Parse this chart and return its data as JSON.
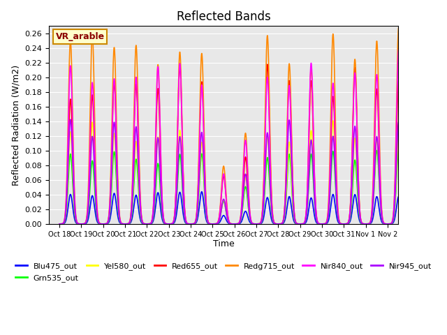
{
  "title": "Reflected Bands",
  "ylabel": "Reflected Radiation (W/m2)",
  "xlabel": "Time",
  "annotation": "VR_arable",
  "ylim": [
    0,
    0.27
  ],
  "yticks": [
    0.0,
    0.02,
    0.04,
    0.06,
    0.08,
    0.1,
    0.12,
    0.14,
    0.16,
    0.18,
    0.2,
    0.22,
    0.24,
    0.26
  ],
  "xtick_labels": [
    "Oct 18",
    "Oct 19",
    "Oct 20",
    "Oct 21",
    "Oct 22",
    "Oct 23",
    "Oct 24",
    "Oct 25",
    "Oct 26",
    "Oct 27",
    "Oct 28",
    "Oct 29",
    "Oct 30",
    "Oct 31",
    "Nov 1",
    "Nov 2"
  ],
  "n_days": 16,
  "pts_per_day": 96,
  "background_color": "#e8e8e8",
  "series": [
    {
      "name": "Blu475_out",
      "color": "#0000ff",
      "peak": 0.04,
      "lw": 1.2
    },
    {
      "name": "Grn535_out",
      "color": "#00ff00",
      "peak": 0.097,
      "lw": 1.2
    },
    {
      "name": "Yel580_out",
      "color": "#ffff00",
      "peak": 0.13,
      "lw": 1.2
    },
    {
      "name": "Red655_out",
      "color": "#ff0000",
      "peak": 0.2,
      "lw": 1.2
    },
    {
      "name": "Redg715_out",
      "color": "#ff8800",
      "peak": 0.245,
      "lw": 1.2
    },
    {
      "name": "Nir840_out",
      "color": "#ff00ff",
      "peak": 0.22,
      "lw": 1.2
    },
    {
      "name": "Nir945_out",
      "color": "#aa00ff",
      "peak": 0.13,
      "lw": 1.2
    }
  ]
}
